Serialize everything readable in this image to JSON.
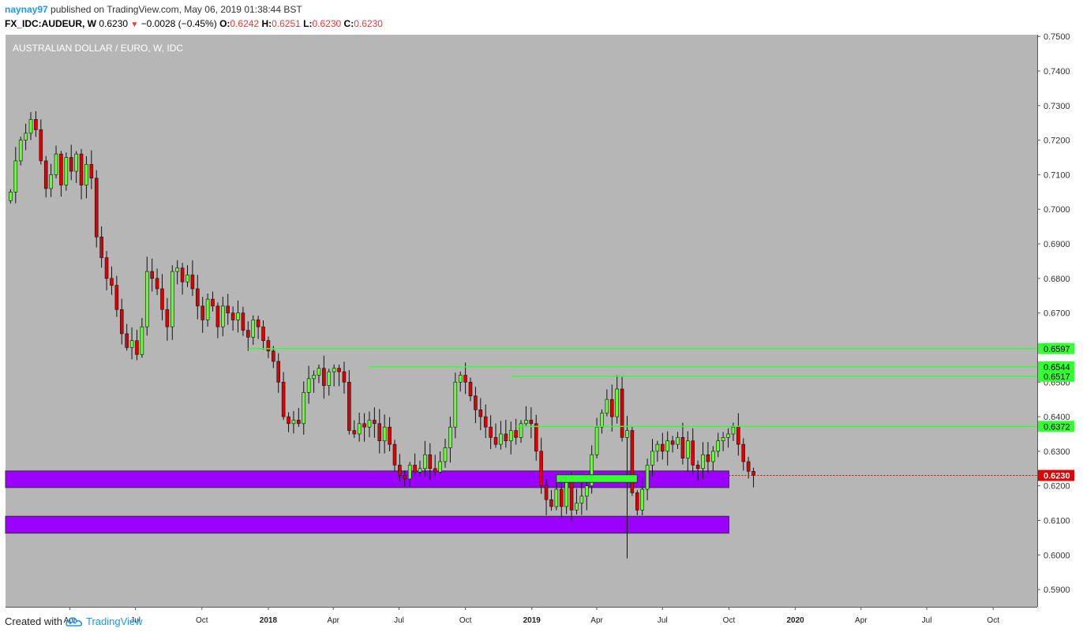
{
  "header": {
    "publisher": "naynay97",
    "published_text": "published on TradingView.com, May 06, 2019 01:38:44 BST",
    "symbol": "FX_IDC:AUDEUR, W",
    "last": "0.6230",
    "change": "−0.0028 (−0.45%)",
    "open_label": "O:",
    "open": "0.6242",
    "high_label": "H:",
    "high": "0.6251",
    "low_label": "L:",
    "low": "0.6230",
    "close_label": "C:",
    "close": "0.6230"
  },
  "footer": {
    "created_with": "Created with",
    "brand": "TradingView"
  },
  "colors": {
    "background": "#b6b6b6",
    "up": "#66ff33",
    "down": "#e00000",
    "zone": "#9b00ff",
    "level_line": "#33ff33",
    "price_tag": "#e00000"
  },
  "chart_data": {
    "type": "candlestick",
    "title": "AUSTRALIAN DOLLAR / EURO, W, IDC",
    "y_range": [
      0.585,
      0.7505
    ],
    "x_range": [
      "2017-01-02",
      "2020-12-01"
    ],
    "y_ticks": [
      "0.5900",
      "0.6000",
      "0.6100",
      "0.6200",
      "0.6300",
      "0.6400",
      "0.6500",
      "0.6600",
      "0.6700",
      "0.6800",
      "0.6900",
      "0.7000",
      "0.7100",
      "0.7200",
      "0.7300",
      "0.7400",
      "0.7500"
    ],
    "x_ticks": [
      {
        "date": "2017-04-01",
        "label": "Apr",
        "bold": false
      },
      {
        "date": "2017-07-01",
        "label": "Jul",
        "bold": false
      },
      {
        "date": "2017-10-01",
        "label": "Oct",
        "bold": false
      },
      {
        "date": "2018-01-01",
        "label": "2018",
        "bold": true
      },
      {
        "date": "2018-04-01",
        "label": "Apr",
        "bold": false
      },
      {
        "date": "2018-07-01",
        "label": "Jul",
        "bold": false
      },
      {
        "date": "2018-10-01",
        "label": "Oct",
        "bold": false
      },
      {
        "date": "2019-01-01",
        "label": "2019",
        "bold": true
      },
      {
        "date": "2019-04-01",
        "label": "Apr",
        "bold": false
      },
      {
        "date": "2019-07-01",
        "label": "Jul",
        "bold": false
      },
      {
        "date": "2019-10-01",
        "label": "Oct",
        "bold": false
      },
      {
        "date": "2020-01-01",
        "label": "2020",
        "bold": true
      },
      {
        "date": "2020-04-01",
        "label": "Apr",
        "bold": false
      },
      {
        "date": "2020-07-01",
        "label": "Jul",
        "bold": false
      },
      {
        "date": "2020-10-01",
        "label": "Oct",
        "bold": false
      }
    ],
    "first_candle_date": "2017-01-09",
    "closes": [
      0.705,
      0.714,
      0.72,
      0.722,
      0.726,
      0.723,
      0.714,
      0.706,
      0.71,
      0.716,
      0.707,
      0.715,
      0.711,
      0.716,
      0.707,
      0.713,
      0.709,
      0.692,
      0.686,
      0.68,
      0.678,
      0.671,
      0.664,
      0.66,
      0.662,
      0.658,
      0.666,
      0.682,
      0.68,
      0.677,
      0.671,
      0.666,
      0.682,
      0.683,
      0.679,
      0.681,
      0.677,
      0.672,
      0.668,
      0.674,
      0.672,
      0.666,
      0.672,
      0.67,
      0.668,
      0.67,
      0.665,
      0.663,
      0.668,
      0.666,
      0.662,
      0.659,
      0.656,
      0.65,
      0.64,
      0.638,
      0.639,
      0.638,
      0.647,
      0.651,
      0.652,
      0.654,
      0.649,
      0.653,
      0.654,
      0.653,
      0.65,
      0.636,
      0.635,
      0.638,
      0.637,
      0.639,
      0.638,
      0.633,
      0.637,
      0.632,
      0.626,
      0.623,
      0.622,
      0.626,
      0.624,
      0.625,
      0.629,
      0.625,
      0.624,
      0.627,
      0.631,
      0.637,
      0.65,
      0.652,
      0.65,
      0.646,
      0.642,
      0.64,
      0.637,
      0.634,
      0.632,
      0.635,
      0.633,
      0.636,
      0.634,
      0.638,
      0.639,
      0.638,
      0.63,
      0.62,
      0.616,
      0.614,
      0.619,
      0.614,
      0.621,
      0.613,
      0.615,
      0.617,
      0.62,
      0.629,
      0.637,
      0.641,
      0.645,
      0.64,
      0.648,
      0.634,
      0.636,
      0.618,
      0.613,
      0.619,
      0.626,
      0.63,
      0.632,
      0.63,
      0.633,
      0.632,
      0.634,
      0.628,
      0.633,
      0.626,
      0.625,
      0.629,
      0.627,
      0.63,
      0.633,
      0.634,
      0.635,
      0.637,
      0.632,
      0.627,
      0.6242,
      0.623
    ],
    "zones": [
      {
        "from": 0.6195,
        "to": 0.6243,
        "start": "2017-01-02",
        "end": "2019-10-01"
      },
      {
        "from": 0.6063,
        "to": 0.6112,
        "start": "2017-01-02",
        "end": "2019-10-01"
      }
    ],
    "small_zone": {
      "from": 0.621,
      "to": 0.6232,
      "start": "2019-02-04",
      "end": "2019-05-27"
    },
    "levels": [
      {
        "price": 0.6597,
        "label": "0.6597",
        "start": "2017-12-04"
      },
      {
        "price": 0.6544,
        "label": "0.6544",
        "start": "2018-05-21"
      },
      {
        "price": 0.6517,
        "label": "0.6517",
        "start": "2018-12-03"
      },
      {
        "price": 0.6372,
        "label": "0.6372",
        "start": "2018-12-10"
      }
    ],
    "last_price": {
      "price": 0.623,
      "label": "0.6230"
    }
  }
}
